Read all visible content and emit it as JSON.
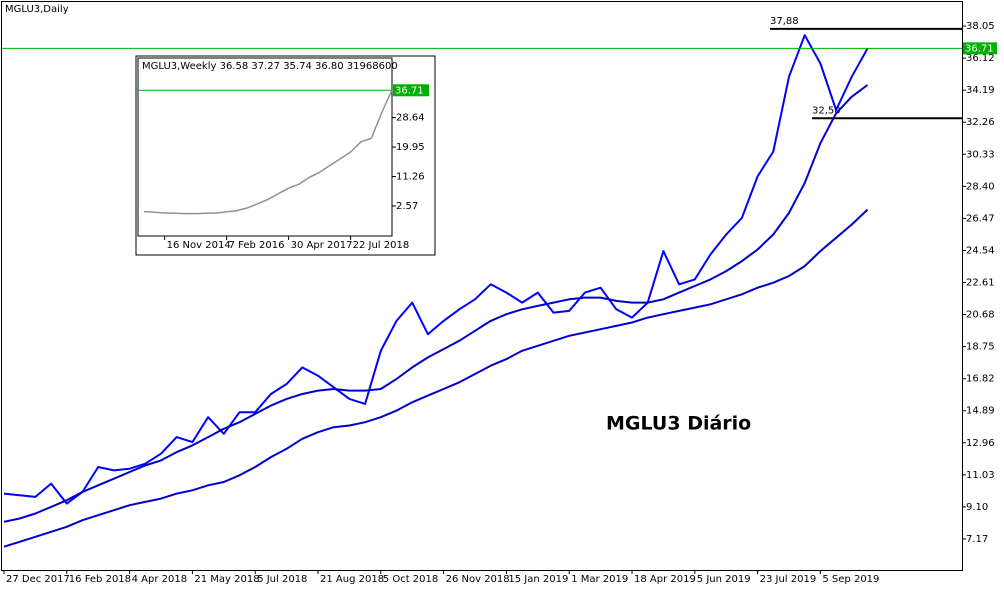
{
  "chart_data": [
    {
      "type": "line",
      "title": "MGLU3,Daily",
      "annotation": "MGLU3 Diário",
      "categories": [
        "27 Dec 2017",
        null,
        null,
        null,
        "16 Feb 2018",
        null,
        null,
        null,
        "4 Apr 2018",
        null,
        null,
        null,
        "21 May 2018",
        null,
        null,
        null,
        "5 Jul 2018",
        null,
        null,
        null,
        "21 Aug 2018",
        null,
        null,
        null,
        "5 Oct 2018",
        null,
        null,
        null,
        "26 Nov 2018",
        null,
        null,
        null,
        "15 Jan 2019",
        null,
        null,
        null,
        "1 Mar 2019",
        null,
        null,
        null,
        "18 Apr 2019",
        null,
        null,
        null,
        "5 Jun 2019",
        null,
        null,
        null,
        "23 Jul 2019",
        null,
        null,
        null,
        "5 Sep 2019",
        null,
        null,
        null
      ],
      "series": [
        {
          "color": "#0000ff",
          "values": [
            9.9,
            9.8,
            9.7,
            10.5,
            9.3,
            10.0,
            11.5,
            11.3,
            11.4,
            11.7,
            12.3,
            13.3,
            13.0,
            14.5,
            13.5,
            14.8,
            14.8,
            15.9,
            16.5,
            17.5,
            17.0,
            16.3,
            15.6,
            15.3,
            18.5,
            20.3,
            21.4,
            19.5,
            20.3,
            21.0,
            21.6,
            22.5,
            22.0,
            21.4,
            22.0,
            20.8,
            20.9,
            22.0,
            22.3,
            21.0,
            20.5,
            21.4,
            24.5,
            22.5,
            22.8,
            24.3,
            25.5,
            26.5,
            29.0,
            30.5,
            35.0,
            37.5,
            35.8,
            33.0,
            35.0,
            36.7
          ]
        },
        {
          "color": "#0000cc",
          "values": [
            8.2,
            8.4,
            8.7,
            9.1,
            9.5,
            10.0,
            10.4,
            10.8,
            11.2,
            11.6,
            11.9,
            12.4,
            12.8,
            13.3,
            13.8,
            14.2,
            14.7,
            15.2,
            15.6,
            15.9,
            16.1,
            16.2,
            16.1,
            16.1,
            16.2,
            16.8,
            17.5,
            18.1,
            18.6,
            19.1,
            19.7,
            20.3,
            20.7,
            21.0,
            21.2,
            21.4,
            21.6,
            21.7,
            21.7,
            21.5,
            21.4,
            21.4,
            21.6,
            22.0,
            22.4,
            22.8,
            23.3,
            23.9,
            24.6,
            25.5,
            26.8,
            28.6,
            31.0,
            32.8,
            33.8,
            34.5
          ]
        },
        {
          "color": "#0000cc",
          "values": [
            6.7,
            7.0,
            7.3,
            7.6,
            7.9,
            8.3,
            8.6,
            8.9,
            9.2,
            9.4,
            9.6,
            9.9,
            10.1,
            10.4,
            10.6,
            11.0,
            11.5,
            12.1,
            12.6,
            13.2,
            13.6,
            13.9,
            14.0,
            14.2,
            14.5,
            14.9,
            15.4,
            15.8,
            16.2,
            16.6,
            17.1,
            17.6,
            18.0,
            18.5,
            18.8,
            19.1,
            19.4,
            19.6,
            19.8,
            20.0,
            20.2,
            20.5,
            20.7,
            20.9,
            21.1,
            21.3,
            21.6,
            21.9,
            22.3,
            22.6,
            23.0,
            23.6,
            24.5,
            25.3,
            26.1,
            27.0
          ]
        }
      ],
      "ylim": [
        5.3,
        39.5
      ],
      "yticks": [
        38.05,
        36.12,
        34.19,
        32.26,
        30.33,
        {
          "value": 28.4,
          "label": "28.40"
        },
        26.47,
        24.54,
        22.61,
        20.68,
        18.75,
        16.82,
        14.89,
        12.96,
        11.03,
        {
          "value": 9.1,
          "label": "9.10"
        },
        7.17
      ],
      "levels": [
        {
          "value": 37.88,
          "label": "37,88"
        },
        {
          "value": 32.5,
          "label": "32,50"
        }
      ],
      "last_price": 36.71,
      "last_color": "#00b000",
      "grid": false
    },
    {
      "type": "line",
      "title": "MGLU3,Weekly  36.58 37.27 35.74 36.80  31968600",
      "categories": [
        null,
        null,
        "16 Nov 2014",
        null,
        null,
        null,
        null,
        null,
        "7 Feb 2016",
        null,
        null,
        null,
        null,
        null,
        "30 Apr 2017",
        null,
        null,
        null,
        null,
        null,
        "22 Jul 2018",
        null,
        null,
        null,
        null
      ],
      "series": [
        {
          "color": "#909090",
          "values": [
            0.9,
            0.7,
            0.5,
            0.4,
            0.3,
            0.3,
            0.4,
            0.5,
            0.8,
            1.2,
            2.0,
            3.2,
            4.5,
            6.2,
            7.8,
            9.0,
            11.0,
            12.5,
            14.5,
            16.5,
            18.5,
            21.5,
            22.5,
            30.0,
            36.7
          ]
        }
      ],
      "ylim": [
        -6.3,
        42.7
      ],
      "yticks": [
        28.64,
        19.95,
        11.26,
        2.57
      ],
      "last_price": 36.71,
      "last_color": "#00b000",
      "grid": false
    }
  ]
}
